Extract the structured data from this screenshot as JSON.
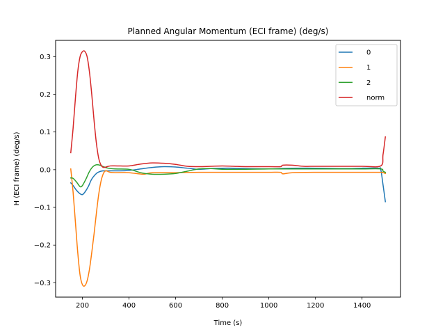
{
  "chart_data": {
    "type": "line",
    "title": "Planned Angular Momentum (ECI frame) (deg/s)",
    "xlabel": "Time (s)",
    "ylabel": "H (ECI frame) (deg/s)",
    "xlim": [
      85,
      1565
    ],
    "ylim": [
      -0.338,
      0.343
    ],
    "xticks": [
      200,
      400,
      600,
      800,
      1000,
      1200,
      1400
    ],
    "xtick_labels": [
      "200",
      "400",
      "600",
      "800",
      "1000",
      "1200",
      "1400"
    ],
    "yticks": [
      -0.3,
      -0.2,
      -0.1,
      0.0,
      0.1,
      0.2,
      0.3
    ],
    "ytick_labels": [
      "−0.3",
      "−0.2",
      "−0.1",
      "0.0",
      "0.1",
      "0.2",
      "0.3"
    ],
    "grid": false,
    "legend_position": "top-right",
    "series": [
      {
        "name": "0",
        "color": "#1f77b4",
        "x": [
          150,
          160,
          175,
          190,
          200,
          210,
          225,
          240,
          260,
          280,
          300,
          350,
          400,
          450,
          500,
          550,
          600,
          650,
          700,
          750,
          800,
          850,
          900,
          1000,
          1050,
          1100,
          1200,
          1300,
          1350,
          1400,
          1470,
          1480,
          1490,
          1500
        ],
        "y": [
          -0.035,
          -0.042,
          -0.055,
          -0.064,
          -0.066,
          -0.06,
          -0.045,
          -0.025,
          -0.01,
          -0.004,
          -0.003,
          -0.003,
          -0.002,
          0.002,
          0.006,
          0.008,
          0.007,
          0.004,
          0.001,
          0.003,
          0.004,
          0.004,
          0.003,
          0.002,
          0.003,
          0.004,
          0.004,
          0.003,
          0.003,
          0.004,
          0.004,
          0.001,
          -0.04,
          -0.085
        ]
      },
      {
        "name": "1",
        "color": "#ff7f0e",
        "x": [
          150,
          160,
          170,
          180,
          190,
          200,
          210,
          220,
          230,
          240,
          250,
          260,
          270,
          280,
          290,
          300,
          310,
          320,
          340,
          400,
          460,
          500,
          600,
          700,
          800,
          900,
          1000,
          1050,
          1060,
          1100,
          1200,
          1300,
          1400,
          1480,
          1490,
          1500
        ],
        "y": [
          0.002,
          -0.06,
          -0.14,
          -0.22,
          -0.28,
          -0.305,
          -0.308,
          -0.295,
          -0.265,
          -0.22,
          -0.17,
          -0.115,
          -0.065,
          -0.03,
          -0.01,
          -0.003,
          -0.005,
          -0.007,
          -0.008,
          -0.008,
          -0.012,
          -0.008,
          -0.008,
          -0.007,
          -0.007,
          -0.007,
          -0.007,
          -0.007,
          -0.011,
          -0.008,
          -0.007,
          -0.007,
          -0.007,
          -0.007,
          -0.008,
          -0.01
        ]
      },
      {
        "name": "2",
        "color": "#2ca02c",
        "x": [
          150,
          160,
          175,
          190,
          200,
          215,
          230,
          245,
          260,
          275,
          290,
          310,
          340,
          400,
          450,
          500,
          550,
          600,
          650,
          700,
          750,
          800,
          900,
          1000,
          1100,
          1200,
          1300,
          1400,
          1480,
          1490,
          1500
        ],
        "y": [
          -0.022,
          -0.023,
          -0.033,
          -0.045,
          -0.042,
          -0.025,
          -0.005,
          0.008,
          0.013,
          0.012,
          0.008,
          0.004,
          0.002,
          0.001,
          -0.008,
          -0.012,
          -0.012,
          -0.01,
          -0.004,
          0.002,
          0.003,
          0.001,
          0.001,
          0.002,
          0.002,
          0.002,
          0.002,
          0.002,
          0.002,
          -0.004,
          -0.007
        ]
      },
      {
        "name": "norm",
        "color": "#d62728",
        "x": [
          150,
          160,
          170,
          180,
          190,
          200,
          210,
          220,
          230,
          240,
          250,
          260,
          270,
          280,
          290,
          300,
          320,
          350,
          400,
          450,
          500,
          550,
          600,
          650,
          700,
          750,
          800,
          850,
          900,
          1000,
          1050,
          1060,
          1100,
          1150,
          1200,
          1300,
          1400,
          1480,
          1490,
          1500
        ],
        "y": [
          0.045,
          0.11,
          0.19,
          0.26,
          0.3,
          0.313,
          0.314,
          0.3,
          0.26,
          0.2,
          0.13,
          0.07,
          0.03,
          0.012,
          0.006,
          0.007,
          0.01,
          0.01,
          0.01,
          0.015,
          0.018,
          0.017,
          0.014,
          0.009,
          0.008,
          0.009,
          0.01,
          0.009,
          0.008,
          0.008,
          0.008,
          0.012,
          0.012,
          0.009,
          0.009,
          0.009,
          0.009,
          0.01,
          0.04,
          0.087
        ]
      }
    ]
  }
}
